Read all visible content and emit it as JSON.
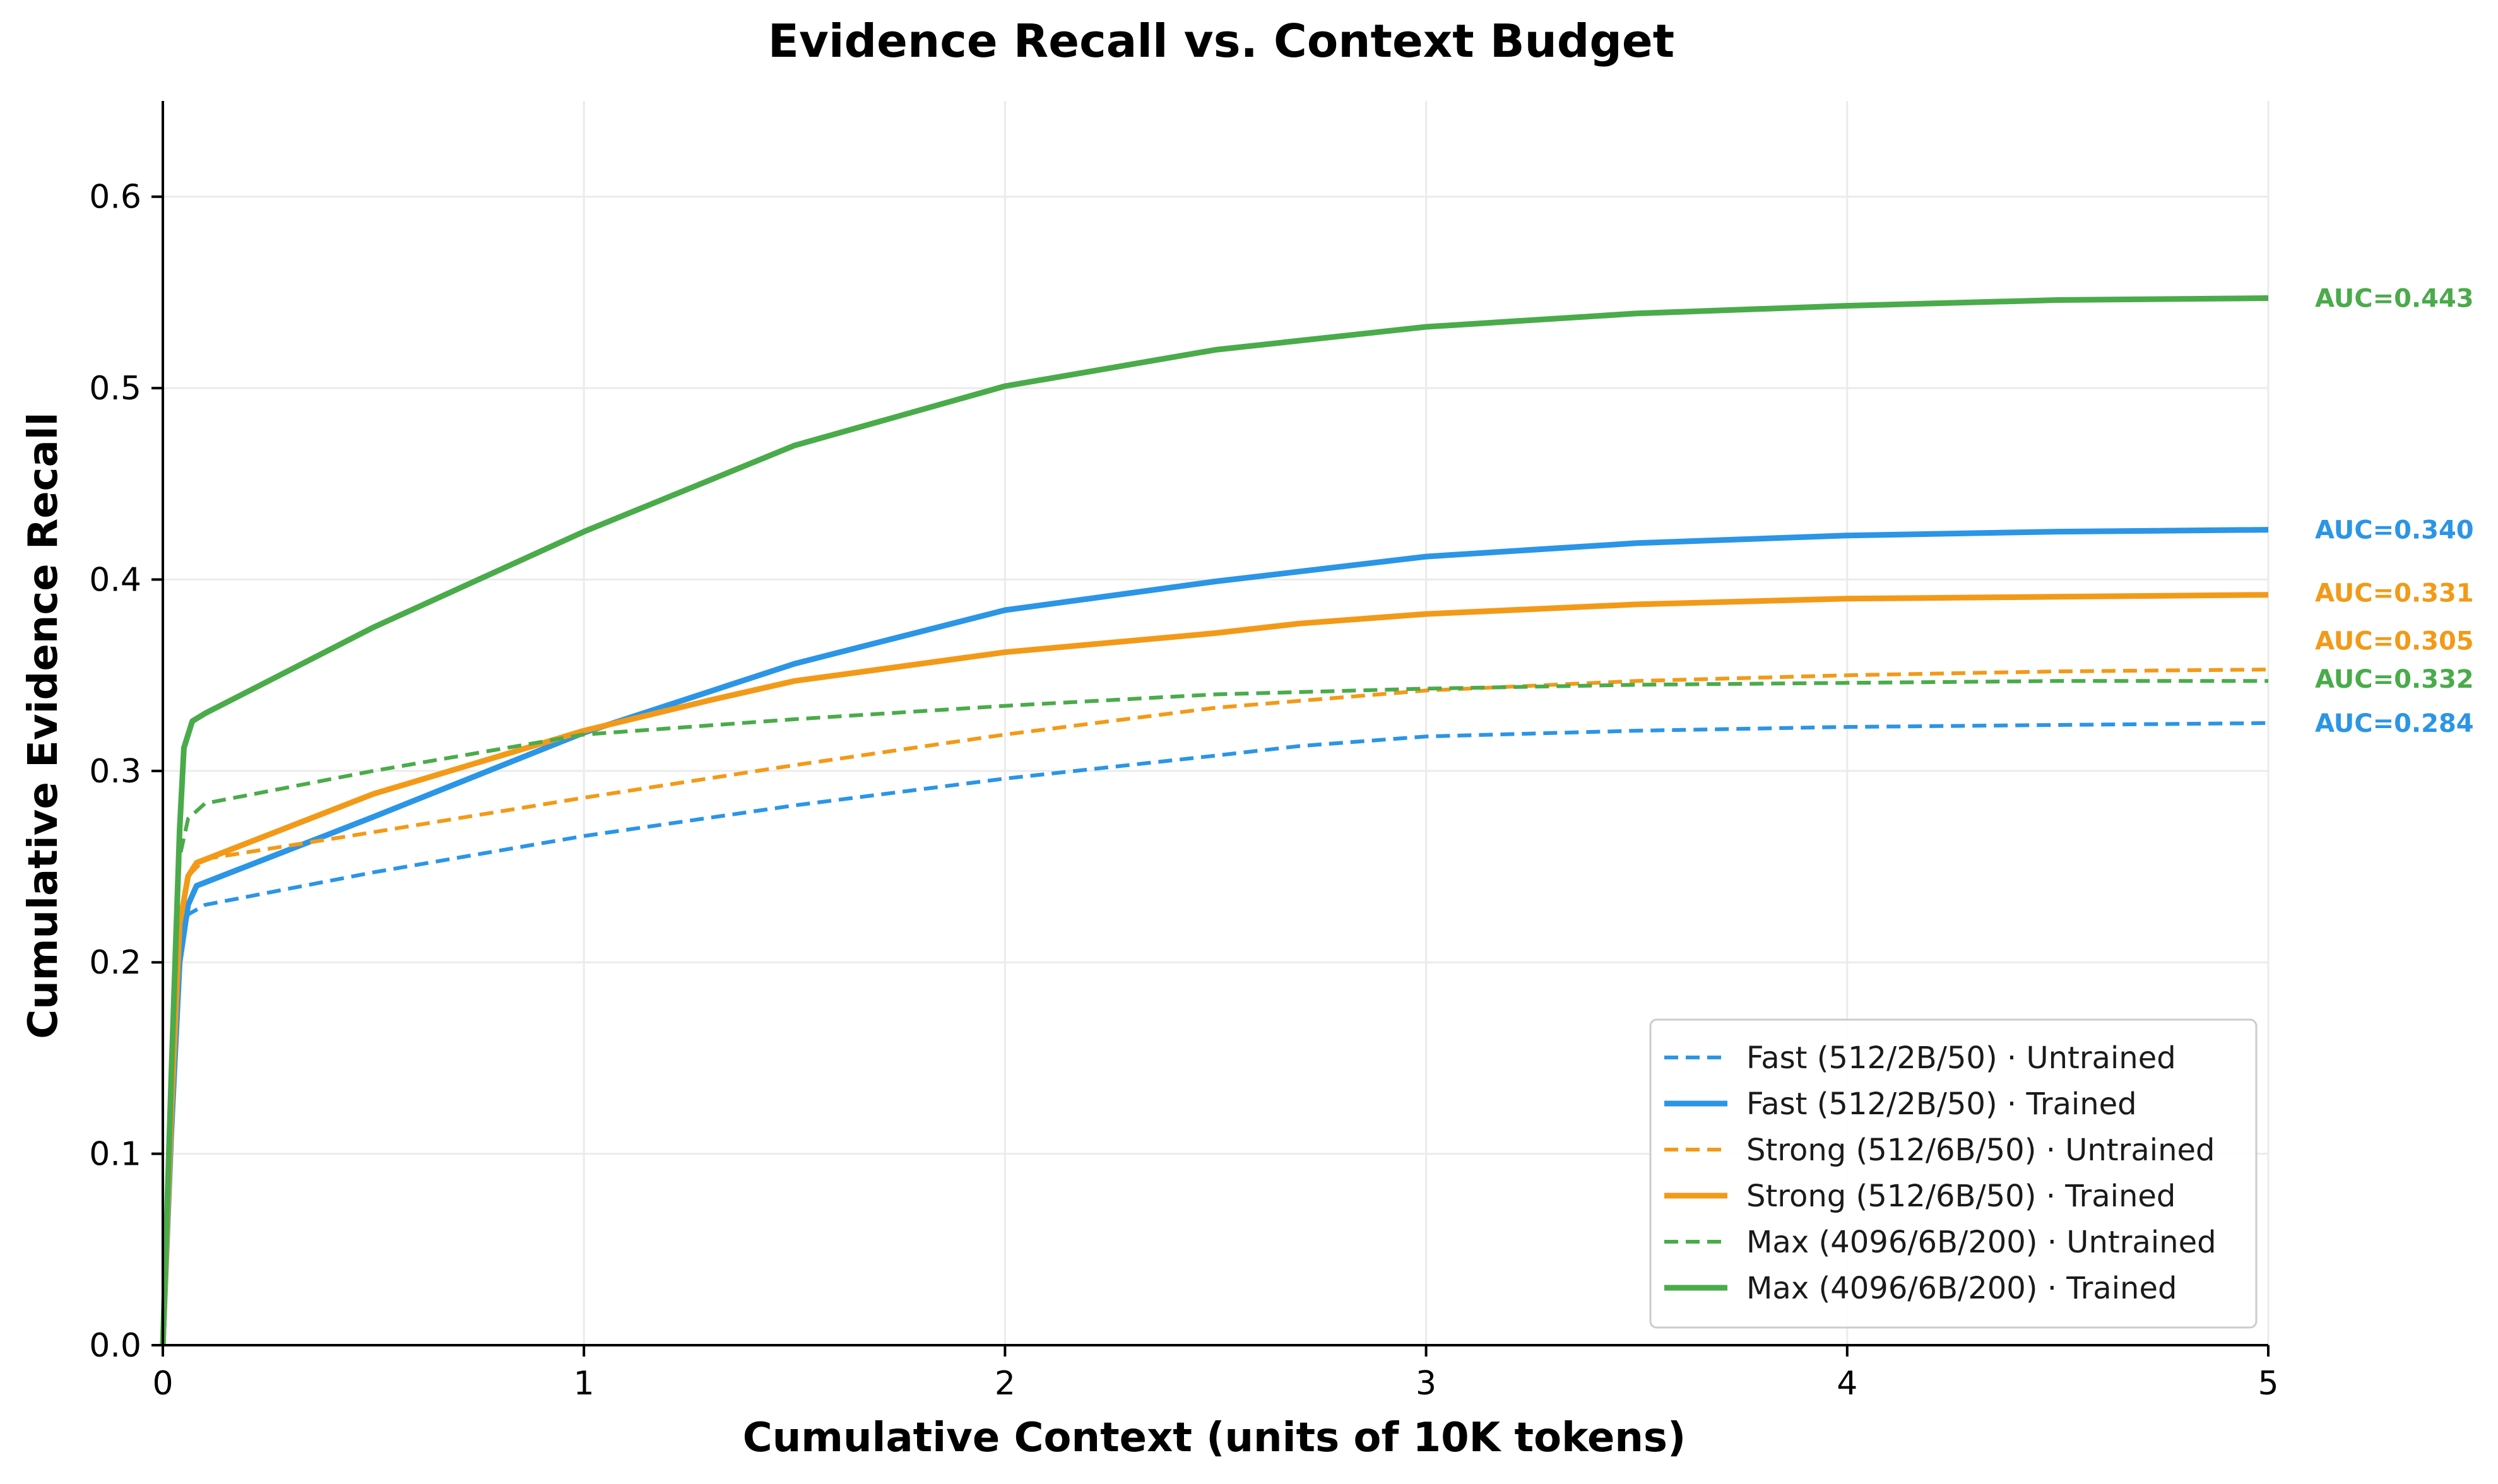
{
  "chart_data": {
    "type": "line",
    "title": "Evidence Recall vs. Context Budget",
    "xlabel": "Cumulative Context (units of 10K tokens)",
    "ylabel": "Cumulative Evidence Recall",
    "xlim": [
      0,
      5
    ],
    "ylim": [
      0,
      0.65
    ],
    "xticks": [
      0,
      1,
      2,
      3,
      4,
      5
    ],
    "yticks": [
      0.0,
      0.1,
      0.2,
      0.3,
      0.4,
      0.5,
      0.6
    ],
    "xtick_labels": [
      "0",
      "1",
      "2",
      "3",
      "4",
      "5"
    ],
    "ytick_labels": [
      "0.0",
      "0.1",
      "0.2",
      "0.3",
      "0.4",
      "0.5",
      "0.6"
    ],
    "grid": true,
    "legend_position": "lower-right",
    "series": [
      {
        "name": "Fast (512/2B/50) · Untrained",
        "color": "#2b95e6",
        "style": "dashed",
        "auc": "AUC=0.284",
        "x": [
          0,
          0.02,
          0.04,
          0.06,
          0.1,
          0.5,
          1.0,
          1.5,
          2.0,
          2.5,
          2.7,
          3.0,
          3.5,
          4.0,
          4.5,
          5.0
        ],
        "y": [
          0,
          0.12,
          0.21,
          0.225,
          0.23,
          0.247,
          0.266,
          0.282,
          0.296,
          0.308,
          0.313,
          0.318,
          0.321,
          0.323,
          0.324,
          0.325
        ]
      },
      {
        "name": "Fast (512/2B/50) · Trained",
        "color": "#2b95e6",
        "style": "solid",
        "auc": "AUC=0.340",
        "x": [
          0,
          0.02,
          0.04,
          0.06,
          0.08,
          0.5,
          1.0,
          1.5,
          2.0,
          2.5,
          3.0,
          3.5,
          4.0,
          4.5,
          5.0
        ],
        "y": [
          0,
          0.11,
          0.2,
          0.23,
          0.24,
          0.276,
          0.32,
          0.356,
          0.384,
          0.399,
          0.412,
          0.419,
          0.423,
          0.425,
          0.426
        ]
      },
      {
        "name": "Strong (512/6B/50) · Untrained",
        "color": "#f29a18",
        "style": "dashed",
        "auc": "AUC=0.305",
        "x": [
          0,
          0.02,
          0.04,
          0.06,
          0.1,
          0.5,
          1.0,
          1.5,
          2.0,
          2.5,
          3.0,
          3.5,
          4.0,
          4.5,
          5.0
        ],
        "y": [
          0,
          0.12,
          0.22,
          0.245,
          0.254,
          0.268,
          0.286,
          0.303,
          0.319,
          0.333,
          0.342,
          0.347,
          0.35,
          0.352,
          0.353
        ]
      },
      {
        "name": "Strong (512/6B/50) · Trained",
        "color": "#f29a18",
        "style": "solid",
        "auc": "AUC=0.331",
        "x": [
          0,
          0.02,
          0.04,
          0.06,
          0.08,
          0.5,
          1.0,
          1.3,
          1.5,
          2.0,
          2.5,
          2.7,
          3.0,
          3.5,
          4.0,
          4.5,
          5.0
        ],
        "y": [
          0,
          0.12,
          0.22,
          0.245,
          0.252,
          0.288,
          0.321,
          0.337,
          0.347,
          0.362,
          0.372,
          0.377,
          0.382,
          0.387,
          0.39,
          0.391,
          0.392
        ]
      },
      {
        "name": "Max (4096/6B/200) · Untrained",
        "color": "#4aab4a",
        "style": "dashed",
        "auc": "AUC=0.332",
        "x": [
          0,
          0.02,
          0.04,
          0.06,
          0.1,
          0.5,
          1.0,
          1.5,
          2.0,
          2.5,
          3.0,
          3.5,
          4.0,
          4.5,
          5.0
        ],
        "y": [
          0,
          0.14,
          0.255,
          0.275,
          0.283,
          0.3,
          0.319,
          0.327,
          0.334,
          0.34,
          0.343,
          0.345,
          0.346,
          0.347,
          0.347
        ]
      },
      {
        "name": "Max (4096/6B/200) · Trained",
        "color": "#4aab4a",
        "style": "solid",
        "auc": "AUC=0.443",
        "x": [
          0,
          0.02,
          0.04,
          0.05,
          0.07,
          0.1,
          0.5,
          1.0,
          1.5,
          2.0,
          2.5,
          3.0,
          3.5,
          4.0,
          4.5,
          5.0
        ],
        "y": [
          0,
          0.14,
          0.27,
          0.312,
          0.326,
          0.33,
          0.375,
          0.425,
          0.47,
          0.501,
          0.52,
          0.532,
          0.539,
          0.543,
          0.546,
          0.547
        ]
      }
    ],
    "annotations": [
      {
        "text": "AUC=0.443",
        "color": "#4aab4a",
        "y": 0.547
      },
      {
        "text": "AUC=0.340",
        "color": "#2b95e6",
        "y": 0.426
      },
      {
        "text": "AUC=0.331",
        "color": "#f29a18",
        "y": 0.393
      },
      {
        "text": "AUC=0.305",
        "color": "#f29a18",
        "y": 0.368
      },
      {
        "text": "AUC=0.332",
        "color": "#4aab4a",
        "y": 0.348
      },
      {
        "text": "AUC=0.284",
        "color": "#2b95e6",
        "y": 0.325
      }
    ]
  }
}
